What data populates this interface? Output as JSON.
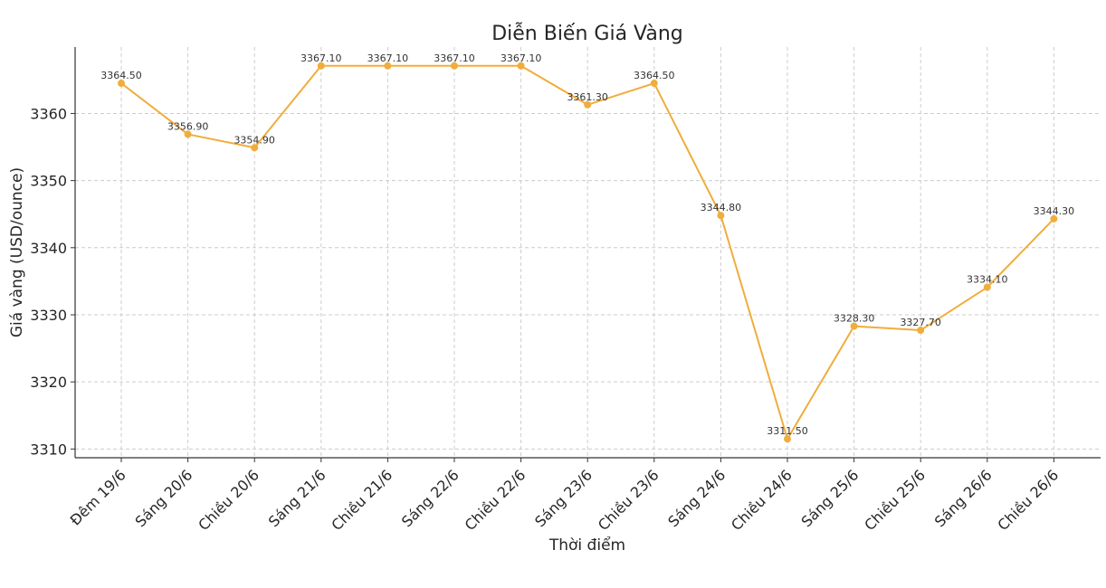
{
  "chart_data": {
    "type": "line",
    "title": "Diễn Biến Giá Vàng",
    "xlabel": "Thời điểm",
    "ylabel": "Giá vàng (USD/ounce)",
    "categories": [
      "Đêm 19/6",
      "Sáng 20/6",
      "Chiều 20/6",
      "Sáng 21/6",
      "Chiều 21/6",
      "Sáng 22/6",
      "Chiều 22/6",
      "Sáng 23/6",
      "Chiều 23/6",
      "Sáng 24/6",
      "Chiều 24/6",
      "Sáng 25/6",
      "Chiều 25/6",
      "Sáng 26/6",
      "Chiều 26/6"
    ],
    "values": [
      3364.5,
      3356.9,
      3354.9,
      3367.1,
      3367.1,
      3367.1,
      3367.1,
      3361.3,
      3364.5,
      3344.8,
      3311.5,
      3328.3,
      3327.7,
      3334.1,
      3344.3
    ],
    "value_labels": [
      "3364.50",
      "3356.90",
      "3354.90",
      "3367.10",
      "3367.10",
      "3367.10",
      "3367.10",
      "3361.30",
      "3364.50",
      "3344.80",
      "3311.50",
      "3328.30",
      "3327.70",
      "3334.10",
      "3344.30"
    ],
    "yticks": [
      3310,
      3320,
      3330,
      3340,
      3350,
      3360
    ],
    "ylim": [
      3308.7,
      3369.9
    ],
    "grid": true,
    "line_color": "#f0ad3c",
    "marker": "circle"
  }
}
